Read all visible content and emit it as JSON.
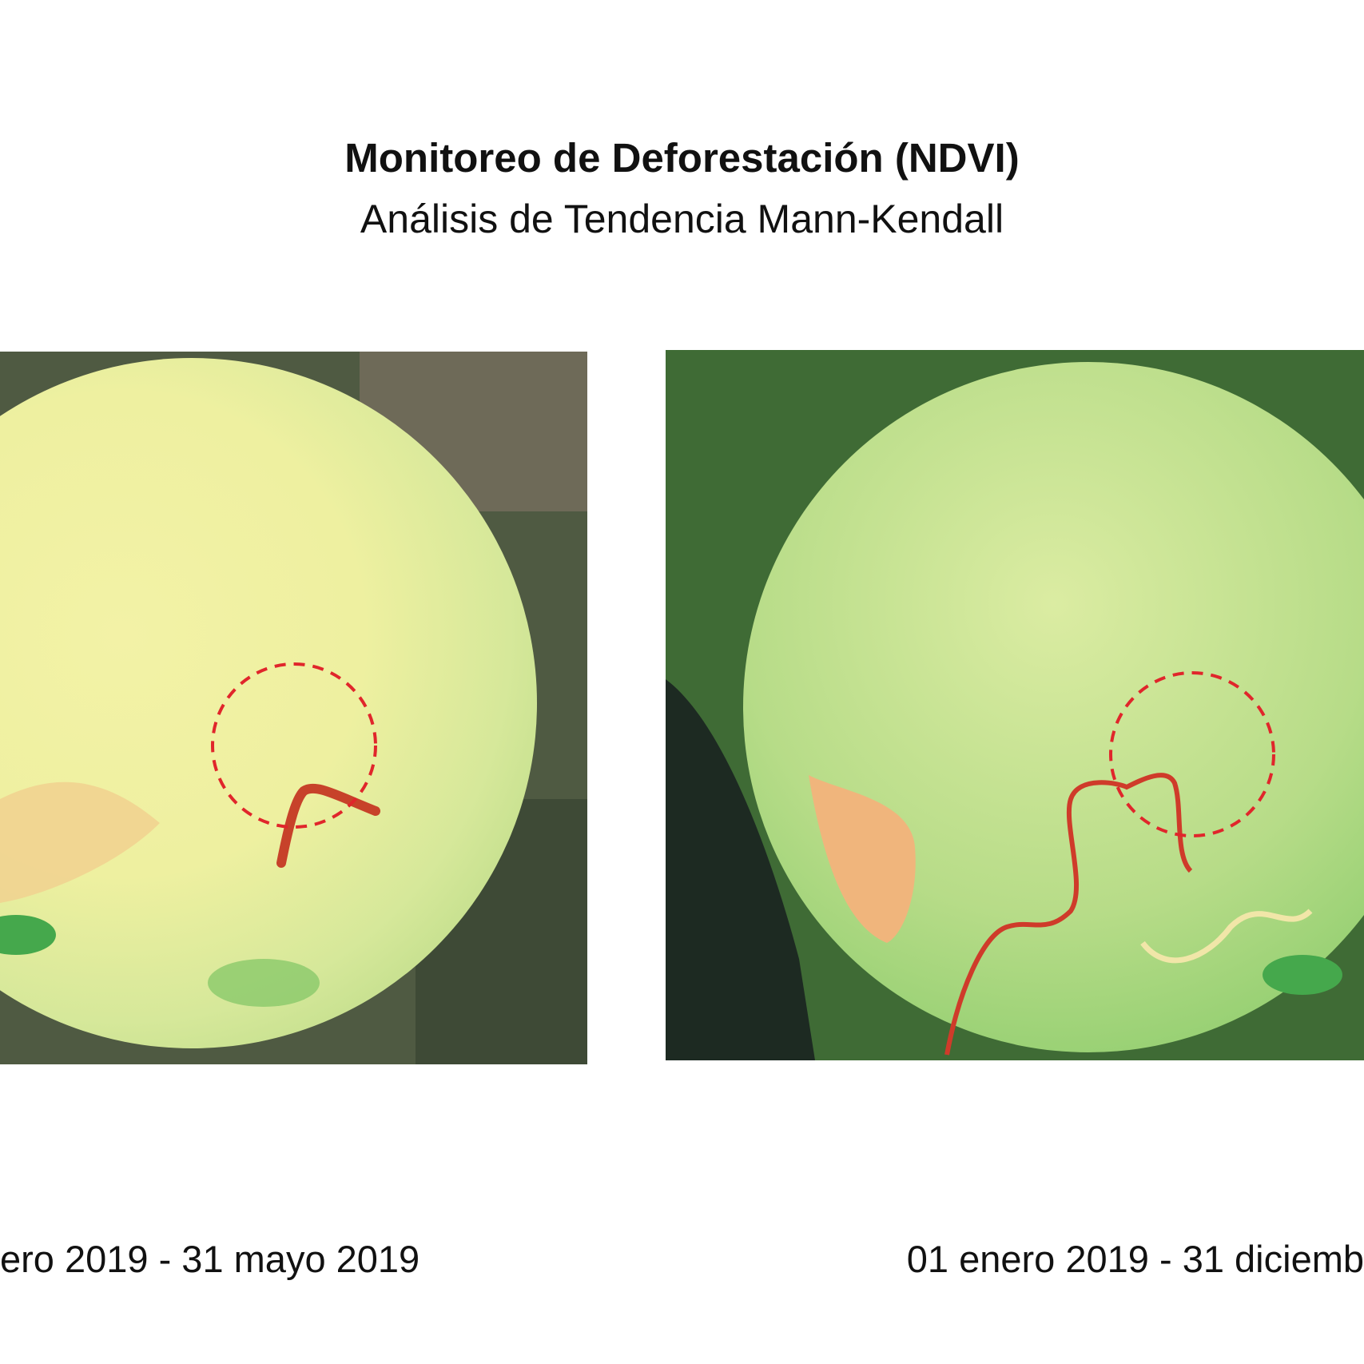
{
  "header": {
    "title": "Monitoreo de Deforestación (NDVI)",
    "subtitle": "Análisis de Tendencia Mann-Kendall"
  },
  "panels": [
    {
      "caption": "ero 2019 - 31 mayo 2019"
    },
    {
      "caption": "01 enero 2019 - 31 diciemb"
    }
  ]
}
